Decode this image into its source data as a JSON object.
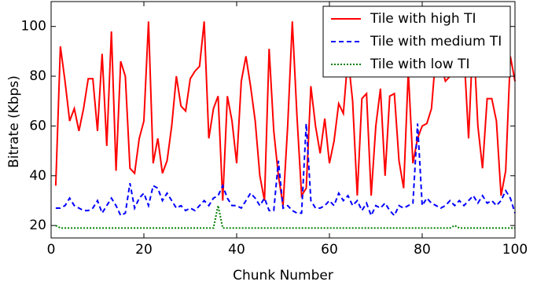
{
  "chart_data": {
    "type": "line",
    "xlabel": "Chunk Number",
    "ylabel": "Bitrate (Kbps)",
    "x": [
      1,
      2,
      3,
      4,
      5,
      6,
      7,
      8,
      9,
      10,
      11,
      12,
      13,
      14,
      15,
      16,
      17,
      18,
      19,
      20,
      21,
      22,
      23,
      24,
      25,
      26,
      27,
      28,
      29,
      30,
      31,
      32,
      33,
      34,
      35,
      36,
      37,
      38,
      39,
      40,
      41,
      42,
      43,
      44,
      45,
      46,
      47,
      48,
      49,
      50,
      51,
      52,
      53,
      54,
      55,
      56,
      57,
      58,
      59,
      60,
      61,
      62,
      63,
      64,
      65,
      66,
      67,
      68,
      69,
      70,
      71,
      72,
      73,
      74,
      75,
      76,
      77,
      78,
      79,
      80,
      81,
      82,
      83,
      84,
      85,
      86,
      87,
      88,
      89,
      90,
      91,
      92,
      93,
      94,
      95,
      96,
      97,
      98,
      99,
      100
    ],
    "series": [
      {
        "name": "Tile with high TI",
        "color": "#ff0000",
        "style": "solid",
        "values": [
          36,
          92,
          78,
          62,
          67,
          58,
          67,
          79,
          79,
          58,
          89,
          52,
          98,
          42,
          86,
          80,
          43,
          41,
          55,
          62,
          102,
          45,
          55,
          41,
          46,
          60,
          80,
          68,
          66,
          79,
          82,
          84,
          102,
          55,
          67,
          72,
          30,
          72,
          62,
          45,
          78,
          88,
          76,
          62,
          40,
          30,
          91,
          58,
          40,
          28,
          60,
          102,
          64,
          32,
          35,
          76,
          60,
          49,
          63,
          45,
          54,
          69,
          65,
          88,
          70,
          32,
          71,
          73,
          32,
          60,
          75,
          40,
          72,
          73,
          46,
          35,
          82,
          45,
          55,
          60,
          61,
          67,
          90,
          85,
          78,
          80,
          108,
          80,
          90,
          55,
          98,
          60,
          43,
          71,
          71,
          62,
          32,
          42,
          88,
          78
        ]
      },
      {
        "name": "Tile with medium TI",
        "color": "#0000ff",
        "style": "dashed",
        "values": [
          27,
          27,
          28,
          31,
          28,
          27,
          26,
          26,
          27,
          30,
          25,
          28,
          31,
          28,
          24,
          25,
          37,
          27,
          31,
          33,
          28,
          36,
          35,
          30,
          33,
          30,
          27,
          28,
          26,
          27,
          26,
          28,
          30,
          28,
          31,
          32,
          36,
          31,
          28,
          28,
          27,
          30,
          33,
          31,
          28,
          31,
          26,
          26,
          46,
          27,
          28,
          26,
          25,
          25,
          61,
          30,
          27,
          27,
          28,
          30,
          28,
          33,
          30,
          32,
          28,
          30,
          26,
          29,
          24,
          28,
          27,
          29,
          26,
          24,
          28,
          27,
          28,
          29,
          61,
          28,
          31,
          29,
          28,
          27,
          28,
          30,
          28,
          30,
          28,
          30,
          32,
          29,
          32,
          29,
          30,
          28,
          30,
          34,
          31,
          25
        ]
      },
      {
        "name": "Tile with low TI",
        "color": "#008000",
        "style": "dotted",
        "values": [
          20,
          19,
          19,
          19,
          19,
          19,
          19,
          19,
          19,
          19,
          19,
          19,
          19,
          19,
          19,
          19,
          19,
          19,
          19,
          19,
          19,
          19,
          19,
          19,
          19,
          19,
          19,
          19,
          19,
          19,
          19,
          19,
          19,
          19,
          19,
          28,
          19,
          19,
          19,
          19,
          19,
          19,
          19,
          19,
          19,
          19,
          19,
          19,
          19,
          19,
          19,
          19,
          19,
          19,
          19,
          19,
          19,
          19,
          19,
          19,
          19,
          19,
          19,
          19,
          19,
          19,
          19,
          19,
          19,
          19,
          19,
          19,
          19,
          19,
          19,
          19,
          19,
          19,
          19,
          19,
          19,
          19,
          19,
          19,
          19,
          19,
          20,
          19,
          19,
          19,
          19,
          19,
          19,
          19,
          19,
          19,
          19,
          19,
          19,
          19
        ]
      }
    ],
    "xlim": [
      0,
      100
    ],
    "xticks": [
      0,
      20,
      40,
      60,
      80,
      100
    ],
    "ylim": [
      15,
      110
    ],
    "yticks": [
      20,
      40,
      60,
      80,
      100
    ],
    "grid": false,
    "legend": "upper right"
  }
}
